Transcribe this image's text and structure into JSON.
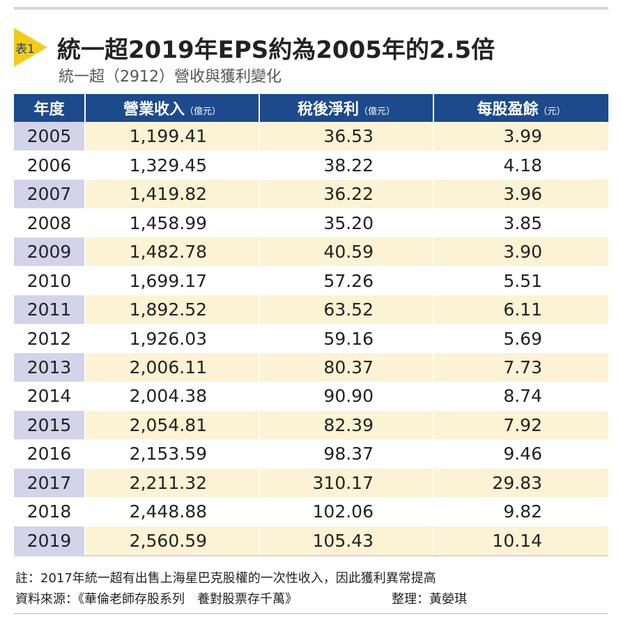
{
  "header": {
    "badge": "表1",
    "title": "統一超2019年EPS約為2005年的2.5倍",
    "subtitle": "統一超（2912）營收與獲利變化"
  },
  "table": {
    "columns": [
      {
        "label": "年度"
      },
      {
        "label": "營業收入",
        "unit": "（億元）"
      },
      {
        "label": "稅後淨利",
        "unit": "（億元）"
      },
      {
        "label": "每股盈餘",
        "unit": "（元）"
      }
    ],
    "rows": [
      [
        "2005",
        "1,199.41",
        "36.53",
        "3.99"
      ],
      [
        "2006",
        "1,329.45",
        "38.22",
        "4.18"
      ],
      [
        "2007",
        "1,419.82",
        "36.22",
        "3.96"
      ],
      [
        "2008",
        "1,458.99",
        "35.20",
        "3.85"
      ],
      [
        "2009",
        "1,482.78",
        "40.59",
        "3.90"
      ],
      [
        "2010",
        "1,699.17",
        "57.26",
        "5.51"
      ],
      [
        "2011",
        "1,892.52",
        "63.52",
        "6.11"
      ],
      [
        "2012",
        "1,926.03",
        "59.16",
        "5.69"
      ],
      [
        "2013",
        "2,006.11",
        "80.37",
        "7.73"
      ],
      [
        "2014",
        "2,004.38",
        "90.90",
        "8.74"
      ],
      [
        "2015",
        "2,054.81",
        "82.39",
        "7.92"
      ],
      [
        "2016",
        "2,153.59",
        "98.37",
        "9.46"
      ],
      [
        "2017",
        "2,211.32",
        "310.17",
        "29.83"
      ],
      [
        "2018",
        "2,448.88",
        "102.06",
        "9.82"
      ],
      [
        "2019",
        "2,560.59",
        "105.43",
        "10.14"
      ]
    ]
  },
  "footer": {
    "note": "註：2017年統一超有出售上海星巴克股權的一次性收入，因此獲利異常提高",
    "source": "資料來源：《華倫老師存股系列　養對股票存千萬》",
    "editor": "整理：黃嫈琪"
  }
}
